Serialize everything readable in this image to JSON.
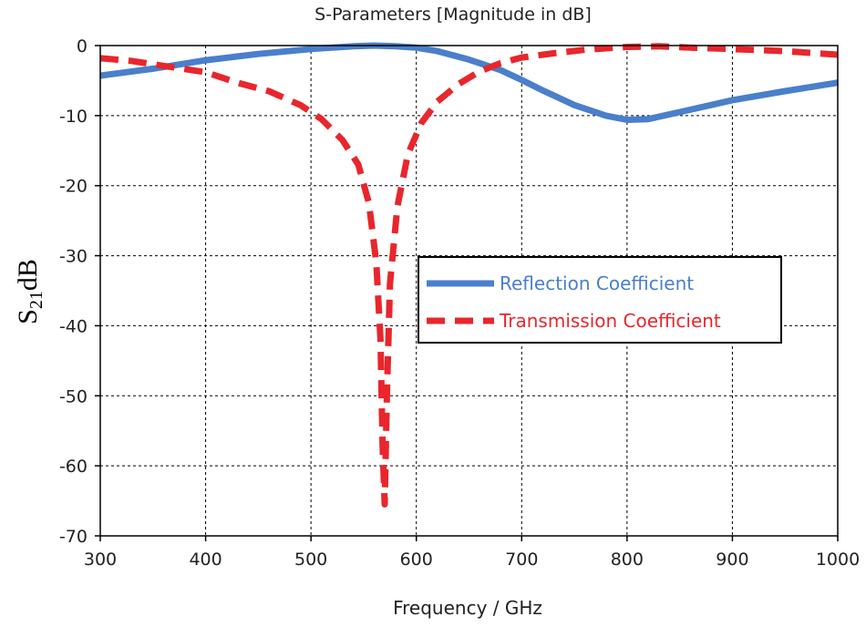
{
  "chart_data": {
    "type": "line",
    "title": "S-Parameters [Magnitude in dB]",
    "xlabel": "Frequency / GHz",
    "ylabel": {
      "main": "S",
      "sub": "21",
      "unit": "dB"
    },
    "xlim": [
      300,
      1000
    ],
    "ylim": [
      -70,
      0
    ],
    "xticks": [
      300,
      400,
      500,
      600,
      700,
      800,
      900,
      1000
    ],
    "yticks": [
      0,
      -10,
      -20,
      -30,
      -40,
      -50,
      -60,
      -70
    ],
    "grid": true,
    "legend_position": "center-right",
    "series": [
      {
        "name": "Reflection Coefficient",
        "color": "#4a7fcb",
        "style": "solid",
        "x": [
          300,
          350,
          400,
          450,
          500,
          540,
          560,
          580,
          600,
          620,
          650,
          680,
          700,
          720,
          750,
          780,
          800,
          820,
          850,
          900,
          950,
          1000
        ],
        "y": [
          -4.3,
          -3.3,
          -2.1,
          -1.2,
          -0.5,
          -0.1,
          0.0,
          -0.1,
          -0.3,
          -0.8,
          -2.0,
          -3.5,
          -4.9,
          -6.4,
          -8.5,
          -10.0,
          -10.6,
          -10.5,
          -9.5,
          -7.8,
          -6.5,
          -5.3
        ]
      },
      {
        "name": "Transmission Coefficient",
        "color": "#e8262c",
        "style": "dashed",
        "x": [
          300,
          330,
          360,
          400,
          430,
          460,
          490,
          510,
          530,
          545,
          555,
          562,
          566,
          568,
          570,
          572,
          575,
          582,
          592,
          605,
          620,
          640,
          660,
          680,
          700,
          730,
          760,
          800,
          830,
          860,
          900,
          950,
          1000
        ],
        "y": [
          -1.8,
          -2.2,
          -2.9,
          -3.8,
          -5.3,
          -6.5,
          -8.5,
          -10.5,
          -13.5,
          -17.0,
          -22.5,
          -31.0,
          -42.0,
          -57.0,
          -65.5,
          -50.0,
          -34.0,
          -23.0,
          -15.5,
          -11.0,
          -8.0,
          -5.5,
          -3.7,
          -2.5,
          -1.7,
          -1.1,
          -0.6,
          -0.2,
          -0.1,
          -0.3,
          -0.5,
          -0.8,
          -1.3
        ]
      }
    ]
  }
}
